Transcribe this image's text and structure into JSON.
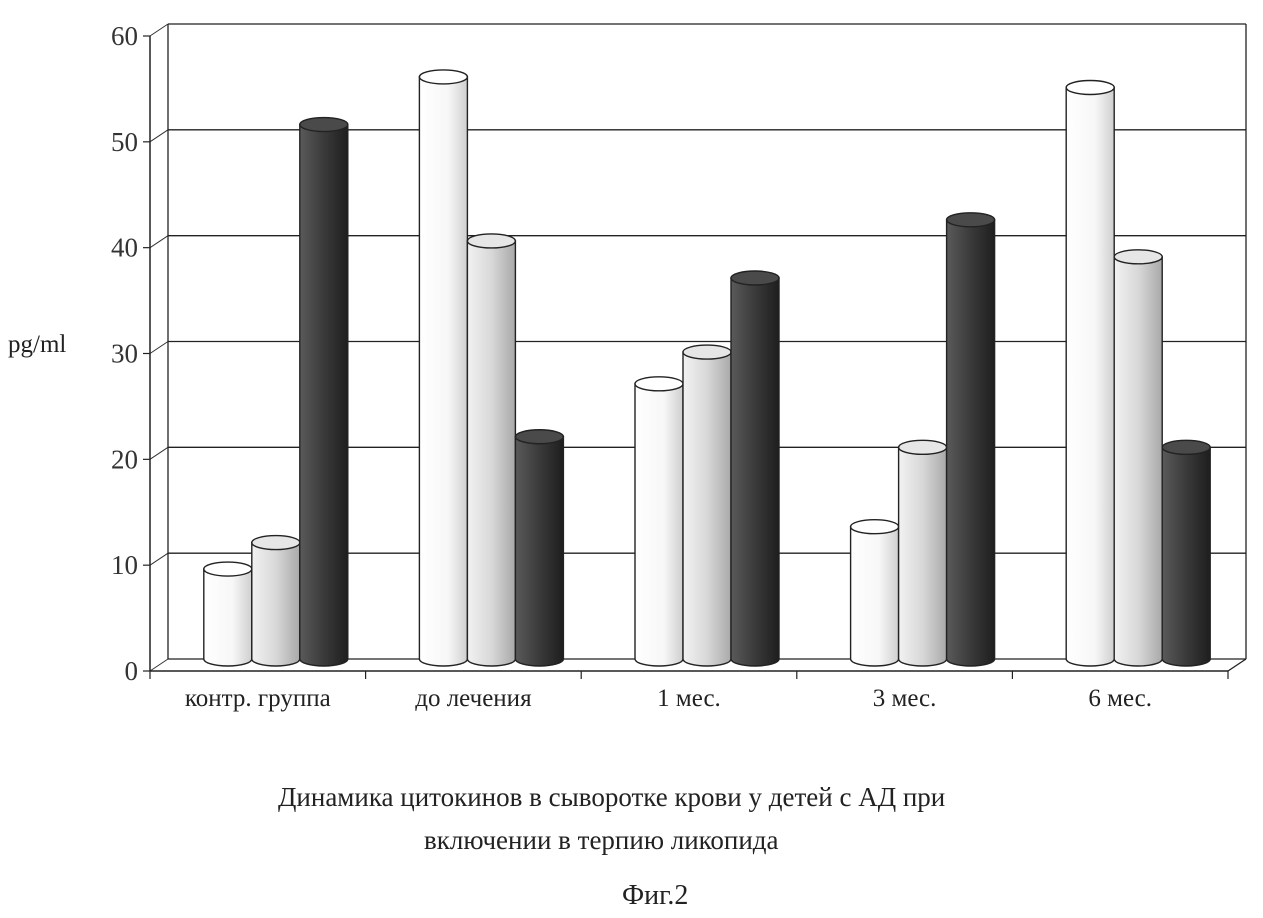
{
  "chart_data": {
    "type": "bar",
    "categories": [
      "контр. группа",
      "до лечения",
      "1 мес.",
      "3 мес.",
      "6 мес."
    ],
    "series": [
      {
        "values": [
          8.5,
          55,
          26,
          12.5,
          54
        ],
        "color": "#fbfbfb"
      },
      {
        "values": [
          11,
          39.5,
          29,
          20,
          38
        ],
        "color": "#d9d9d9"
      },
      {
        "values": [
          50.5,
          21,
          36,
          41.5,
          20
        ],
        "color": "#3a3a3a"
      }
    ],
    "ylabel": "pg/ml",
    "ylim": [
      0,
      60
    ],
    "yticks": [
      "0",
      "10",
      "20",
      "30",
      "40",
      "50",
      "60"
    ],
    "grid": true,
    "style": "3d-cylinder"
  },
  "caption": {
    "line1": "Динамика цитокинов в сыворотке крови у детей с АД при",
    "line2": "включении в терпию ликопида"
  },
  "figure_label": "Фиг.2"
}
